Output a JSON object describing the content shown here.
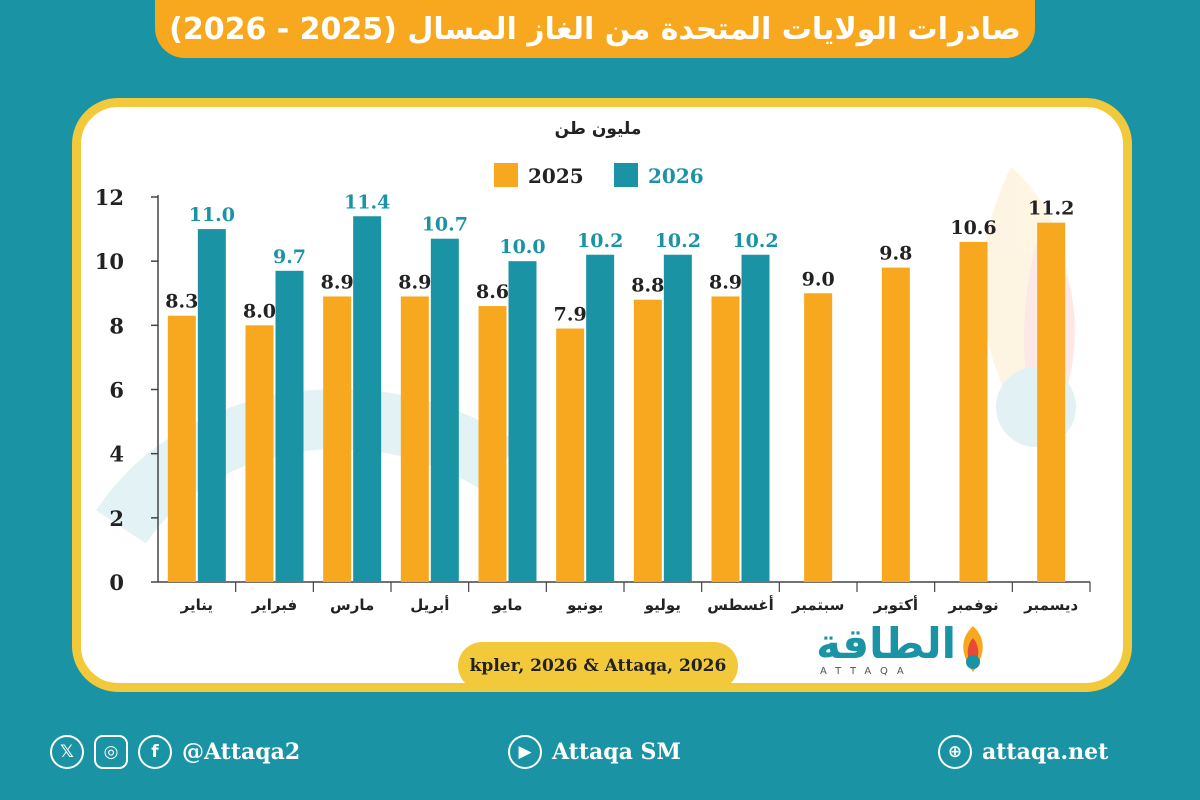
{
  "title": "صادرات الولايات المتحدة من الغاز المسال (2025 - 2026)",
  "source": "kpler, 2026 & Attaqa, 2026",
  "logo": {
    "text": "الطاقة",
    "sub": "ATTAQA"
  },
  "footer": {
    "social_handle": "@Attaqa2",
    "youtube": "Attaqa SM",
    "website": "attaqa.net",
    "icons": [
      "x-icon",
      "instagram-icon",
      "facebook-icon",
      "youtube-icon",
      "globe-icon"
    ]
  },
  "colors": {
    "series_2025": "#f7a81e",
    "series_2026": "#1a94a4",
    "label_2026": "#1a94a4",
    "label_2025": "#222222"
  },
  "chart_data": {
    "type": "bar",
    "unit_label": "مليون طن",
    "categories": [
      "يناير",
      "فبراير",
      "مارس",
      "أبريل",
      "مايو",
      "يونيو",
      "يوليو",
      "أغسطس",
      "سبتمبر",
      "أكتوبر",
      "نوفمبر",
      "ديسمبر"
    ],
    "series": [
      {
        "name": "2025",
        "values": [
          8.3,
          8.0,
          8.9,
          8.9,
          8.6,
          7.9,
          8.8,
          8.9,
          9.0,
          9.8,
          10.6,
          11.2
        ]
      },
      {
        "name": "2026",
        "values": [
          11.0,
          9.7,
          11.4,
          10.7,
          10.0,
          10.2,
          10.2,
          10.2,
          null,
          null,
          null,
          null
        ]
      }
    ],
    "y_ticks": [
      0,
      2,
      4,
      6,
      8,
      10,
      12
    ],
    "ylim": [
      0,
      12
    ],
    "legend": "top-center",
    "grid": false
  }
}
